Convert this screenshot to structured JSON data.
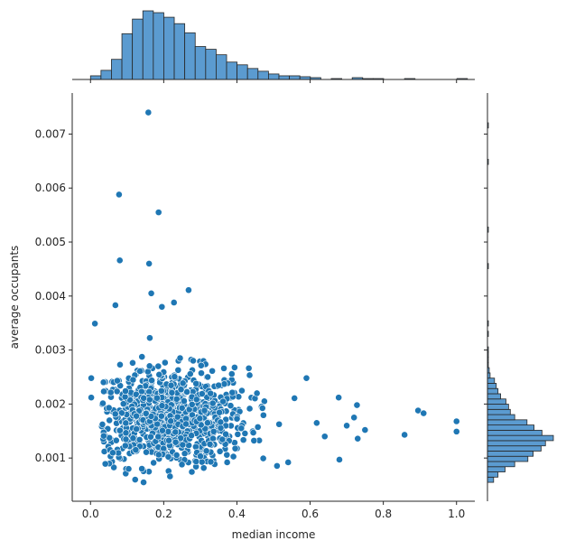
{
  "chart_data": {
    "type": "scatter",
    "title": "",
    "xlabel": "median income",
    "ylabel": "average occupants",
    "xlim": [
      -0.05,
      1.05
    ],
    "ylim": [
      0.0002,
      0.00776
    ],
    "x_ticks": [
      0.0,
      0.2,
      0.4,
      0.6,
      0.8,
      1.0
    ],
    "x_tick_labels": [
      "0.0",
      "0.2",
      "0.4",
      "0.6",
      "0.8",
      "1.0"
    ],
    "y_ticks": [
      0.001,
      0.002,
      0.003,
      0.004,
      0.005,
      0.006,
      0.007
    ],
    "y_tick_labels": [
      "0.001",
      "0.002",
      "0.003",
      "0.004",
      "0.005",
      "0.006",
      "0.007"
    ],
    "grid": false,
    "legend": "none",
    "point_color": "#1f77b4",
    "marginal_bar_color": "#5b9bd0",
    "outlier_points": [
      {
        "x": 0.158,
        "y": 0.0074
      },
      {
        "x": 0.078,
        "y": 0.00588
      },
      {
        "x": 0.186,
        "y": 0.00555
      },
      {
        "x": 0.08,
        "y": 0.00466
      },
      {
        "x": 0.16,
        "y": 0.0046
      },
      {
        "x": 0.268,
        "y": 0.00411
      },
      {
        "x": 0.166,
        "y": 0.00405
      },
      {
        "x": 0.228,
        "y": 0.00388
      },
      {
        "x": 0.068,
        "y": 0.00383
      },
      {
        "x": 0.195,
        "y": 0.0038
      },
      {
        "x": 0.012,
        "y": 0.00349
      },
      {
        "x": 0.59,
        "y": 0.00248
      },
      {
        "x": 0.002,
        "y": 0.00248
      },
      {
        "x": 0.002,
        "y": 0.00212
      },
      {
        "x": 0.678,
        "y": 0.00212
      },
      {
        "x": 0.728,
        "y": 0.00198
      },
      {
        "x": 0.895,
        "y": 0.00188
      },
      {
        "x": 0.91,
        "y": 0.00183
      },
      {
        "x": 1.0,
        "y": 0.00168
      },
      {
        "x": 1.0,
        "y": 0.00149
      },
      {
        "x": 0.75,
        "y": 0.00152
      },
      {
        "x": 0.858,
        "y": 0.00143
      },
      {
        "x": 0.73,
        "y": 0.00136
      },
      {
        "x": 0.54,
        "y": 0.00092
      },
      {
        "x": 0.68,
        "y": 0.00097
      },
      {
        "x": 0.64,
        "y": 0.0014
      },
      {
        "x": 0.618,
        "y": 0.00165
      },
      {
        "x": 0.72,
        "y": 0.00175
      },
      {
        "x": 0.7,
        "y": 0.0016
      },
      {
        "x": 0.145,
        "y": 0.00055
      },
      {
        "x": 0.122,
        "y": 0.0006
      },
      {
        "x": 0.036,
        "y": 0.00141
      }
    ],
    "cluster": {
      "count": 900,
      "x_center": 0.21,
      "x_spread": 0.11,
      "y_center": 0.00175,
      "y_spread": 0.00045,
      "x_range": [
        0.03,
        0.56
      ],
      "y_range": [
        0.00065,
        0.0034
      ]
    },
    "x_histogram": {
      "bin_edges_start": 0.0,
      "bin_width": 0.0286,
      "counts": [
        4,
        10,
        22,
        50,
        66,
        75,
        73,
        68,
        61,
        51,
        36,
        33,
        27,
        19,
        16,
        12,
        9,
        6,
        4,
        4,
        3,
        2,
        0,
        1,
        0,
        2,
        1,
        1,
        0,
        0,
        1,
        0,
        0,
        0,
        0,
        1
      ]
    },
    "y_histogram": {
      "bin_edges_start": 0.00055,
      "bin_width": 9.65e-05,
      "counts": [
        7,
        12,
        20,
        31,
        46,
        52,
        61,
        66,
        75,
        62,
        53,
        45,
        31,
        26,
        24,
        21,
        15,
        12,
        10,
        8,
        3,
        2,
        1,
        1,
        1,
        1,
        0,
        0,
        1,
        0,
        1,
        0,
        0,
        0,
        0,
        0,
        0,
        0,
        0,
        0,
        0,
        1,
        0,
        0,
        0,
        0,
        0,
        0,
        1,
        0,
        0,
        0,
        0,
        0,
        0,
        0,
        0,
        0,
        0,
        0,
        0,
        1,
        0,
        0,
        0,
        0,
        0,
        0,
        1
      ]
    }
  }
}
